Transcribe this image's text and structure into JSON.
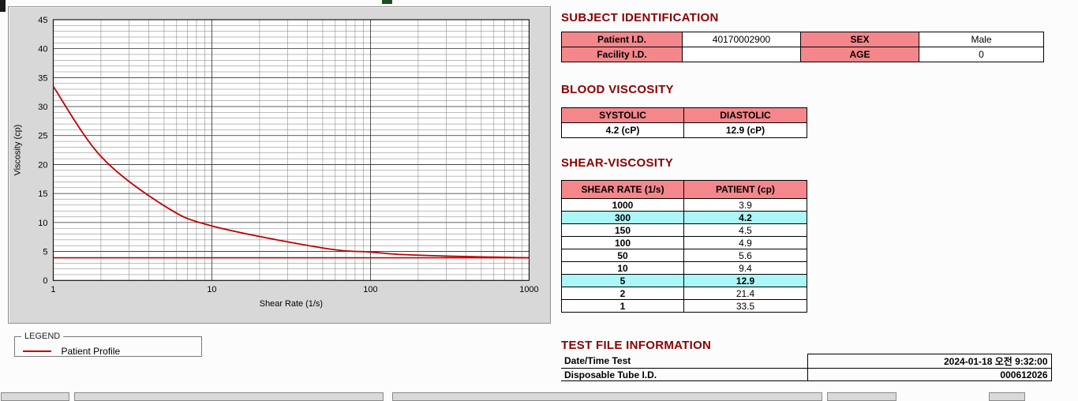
{
  "colors": {
    "heading": "#8b0000",
    "header_bg": "#f4878b",
    "highlight_bg": "#abf6f6",
    "curve": "#c00000",
    "axis_label": "#0000c8",
    "panel_bg": "#d8d8d8"
  },
  "legend": {
    "box_label": "LEGEND",
    "series_label": "Patient Profile"
  },
  "subject": {
    "title": "SUBJECT IDENTIFICATION",
    "rows": [
      {
        "label1": "Patient I.D.",
        "value1": "40170002900",
        "label2": "SEX",
        "value2": "Male"
      },
      {
        "label1": "Facility I.D.",
        "value1": "",
        "label2": "AGE",
        "value2": "0"
      }
    ]
  },
  "blood": {
    "title": "BLOOD VISCOSITY",
    "headers": [
      "SYSTOLIC",
      "DIASTOLIC"
    ],
    "values": [
      "4.2 (cP)",
      "12.9 (cP)"
    ]
  },
  "shear_table": {
    "title": "SHEAR-VISCOSITY",
    "headers": [
      "SHEAR RATE (1/s)",
      "PATIENT (cp)"
    ],
    "rows": [
      {
        "rate": "1000",
        "value": "3.9",
        "highlight": false
      },
      {
        "rate": "300",
        "value": "4.2",
        "highlight": true
      },
      {
        "rate": "150",
        "value": "4.5",
        "highlight": false
      },
      {
        "rate": "100",
        "value": "4.9",
        "highlight": false
      },
      {
        "rate": "50",
        "value": "5.6",
        "highlight": false
      },
      {
        "rate": "10",
        "value": "9.4",
        "highlight": false
      },
      {
        "rate": "5",
        "value": "12.9",
        "highlight": true
      },
      {
        "rate": "2",
        "value": "21.4",
        "highlight": false
      },
      {
        "rate": "1",
        "value": "33.5",
        "highlight": false
      }
    ]
  },
  "test_file": {
    "title": "TEST FILE INFORMATION",
    "rows": [
      {
        "label": "Date/Time Test",
        "value": "2024-01-18  오전 9:32:00"
      },
      {
        "label": "Disposable Tube I.D.",
        "value": "000612026"
      }
    ]
  },
  "chart_data": {
    "type": "line",
    "title": "",
    "xlabel": "Shear Rate (1/s)",
    "ylabel": "Viscosity (cp)",
    "x_scale": "log",
    "xlim": [
      1,
      1000
    ],
    "ylim": [
      0,
      45
    ],
    "y_tick_step": 5,
    "x_ticks": [
      1,
      10,
      100,
      1000
    ],
    "grid": "on",
    "legend_position": "below-left",
    "series": [
      {
        "name": "Patient Profile",
        "color": "#c00000",
        "x": [
          1,
          2,
          5,
          10,
          50,
          100,
          150,
          300,
          1000
        ],
        "y": [
          33.5,
          21.4,
          12.9,
          9.4,
          5.6,
          4.9,
          4.5,
          4.2,
          3.9
        ]
      }
    ],
    "reference_line_y": 3.9
  }
}
